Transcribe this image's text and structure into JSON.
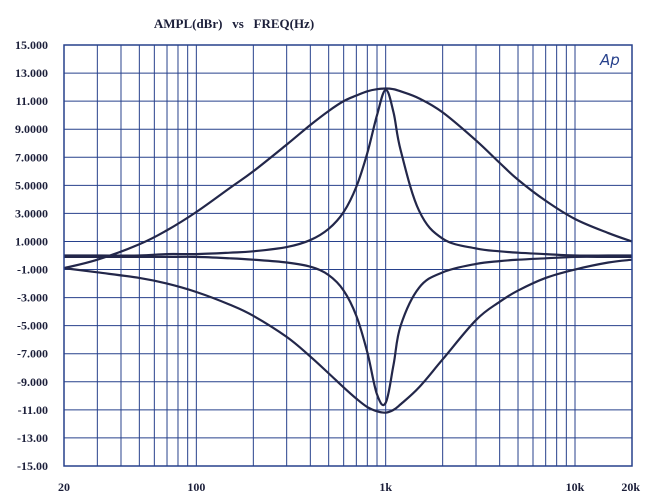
{
  "chart_data": {
    "type": "line",
    "title": "AMPL(dBr)   vs   FREQ(Hz)",
    "xlabel": "",
    "ylabel": "",
    "x_scale": "log",
    "xlim": [
      20,
      20000
    ],
    "ylim": [
      -15,
      15
    ],
    "grid": true,
    "logo_text": "Ap",
    "x_tick_labels": [
      {
        "value": 20,
        "label": "20"
      },
      {
        "value": 100,
        "label": "100"
      },
      {
        "value": 1000,
        "label": "1k"
      },
      {
        "value": 10000,
        "label": "10k"
      },
      {
        "value": 20000,
        "label": "20k"
      }
    ],
    "y_tick_labels": [
      {
        "value": 15,
        "label": "15.000"
      },
      {
        "value": 13,
        "label": "13.000"
      },
      {
        "value": 11,
        "label": "11.000"
      },
      {
        "value": 9,
        "label": "9.0000"
      },
      {
        "value": 7,
        "label": "7.0000"
      },
      {
        "value": 5,
        "label": "5.0000"
      },
      {
        "value": 3,
        "label": "3.0000"
      },
      {
        "value": 1,
        "label": "1.0000"
      },
      {
        "value": -1,
        "label": "-1.000"
      },
      {
        "value": -3,
        "label": "-3.000"
      },
      {
        "value": -5,
        "label": "-5.000"
      },
      {
        "value": -7,
        "label": "-7.000"
      },
      {
        "value": -9,
        "label": "-9.000"
      },
      {
        "value": -11,
        "label": "-11.00"
      },
      {
        "value": -13,
        "label": "-13.00"
      },
      {
        "value": -15,
        "label": "-15.00"
      }
    ],
    "series": [
      {
        "x": [
          20,
          30,
          50,
          70,
          100,
          150,
          200,
          300,
          400,
          500,
          600,
          700,
          800,
          900,
          1000,
          1100,
          1200,
          1500,
          2000,
          3000,
          4000,
          5000,
          7000,
          10000,
          15000,
          20000
        ],
        "values": [
          -0.9,
          -0.3,
          0.8,
          1.8,
          3.1,
          4.8,
          6.0,
          7.9,
          9.3,
          10.3,
          11.0,
          11.4,
          11.7,
          11.85,
          11.9,
          11.85,
          11.7,
          11.2,
          10.2,
          8.2,
          6.6,
          5.4,
          3.9,
          2.6,
          1.6,
          1.0
        ]
      },
      {
        "x": [
          20,
          30,
          50,
          70,
          100,
          150,
          200,
          300,
          400,
          500,
          600,
          700,
          800,
          900,
          1000,
          1100,
          1200,
          1500,
          2000,
          3000,
          4000,
          5000,
          7000,
          10000,
          15000,
          20000
        ],
        "values": [
          0.0,
          0.0,
          0.0,
          0.1,
          0.1,
          0.2,
          0.3,
          0.6,
          1.1,
          1.9,
          3.1,
          4.9,
          7.3,
          10.0,
          11.8,
          10.2,
          7.5,
          3.2,
          1.2,
          0.5,
          0.3,
          0.2,
          0.1,
          0.0,
          0.0,
          0.0
        ]
      },
      {
        "x": [
          20,
          30,
          50,
          70,
          100,
          150,
          200,
          300,
          400,
          500,
          600,
          700,
          800,
          900,
          1000,
          1100,
          1200,
          1500,
          2000,
          3000,
          4000,
          5000,
          7000,
          10000,
          15000,
          20000
        ],
        "values": [
          -0.1,
          -0.1,
          -0.1,
          -0.1,
          -0.1,
          -0.2,
          -0.3,
          -0.5,
          -0.8,
          -1.4,
          -2.5,
          -4.3,
          -6.9,
          -9.9,
          -10.5,
          -7.8,
          -5.0,
          -2.3,
          -1.2,
          -0.6,
          -0.4,
          -0.3,
          -0.2,
          -0.1,
          -0.1,
          -0.1
        ]
      },
      {
        "x": [
          20,
          30,
          50,
          70,
          100,
          150,
          200,
          300,
          400,
          500,
          600,
          700,
          800,
          900,
          1000,
          1100,
          1200,
          1500,
          2000,
          3000,
          4000,
          5000,
          7000,
          10000,
          15000,
          20000
        ],
        "values": [
          -0.9,
          -1.2,
          -1.6,
          -2.0,
          -2.6,
          -3.5,
          -4.3,
          -5.8,
          -7.2,
          -8.4,
          -9.4,
          -10.2,
          -10.8,
          -11.1,
          -11.2,
          -11.0,
          -10.6,
          -9.4,
          -7.4,
          -4.6,
          -3.3,
          -2.5,
          -1.6,
          -1.0,
          -0.5,
          -0.3
        ]
      }
    ]
  }
}
